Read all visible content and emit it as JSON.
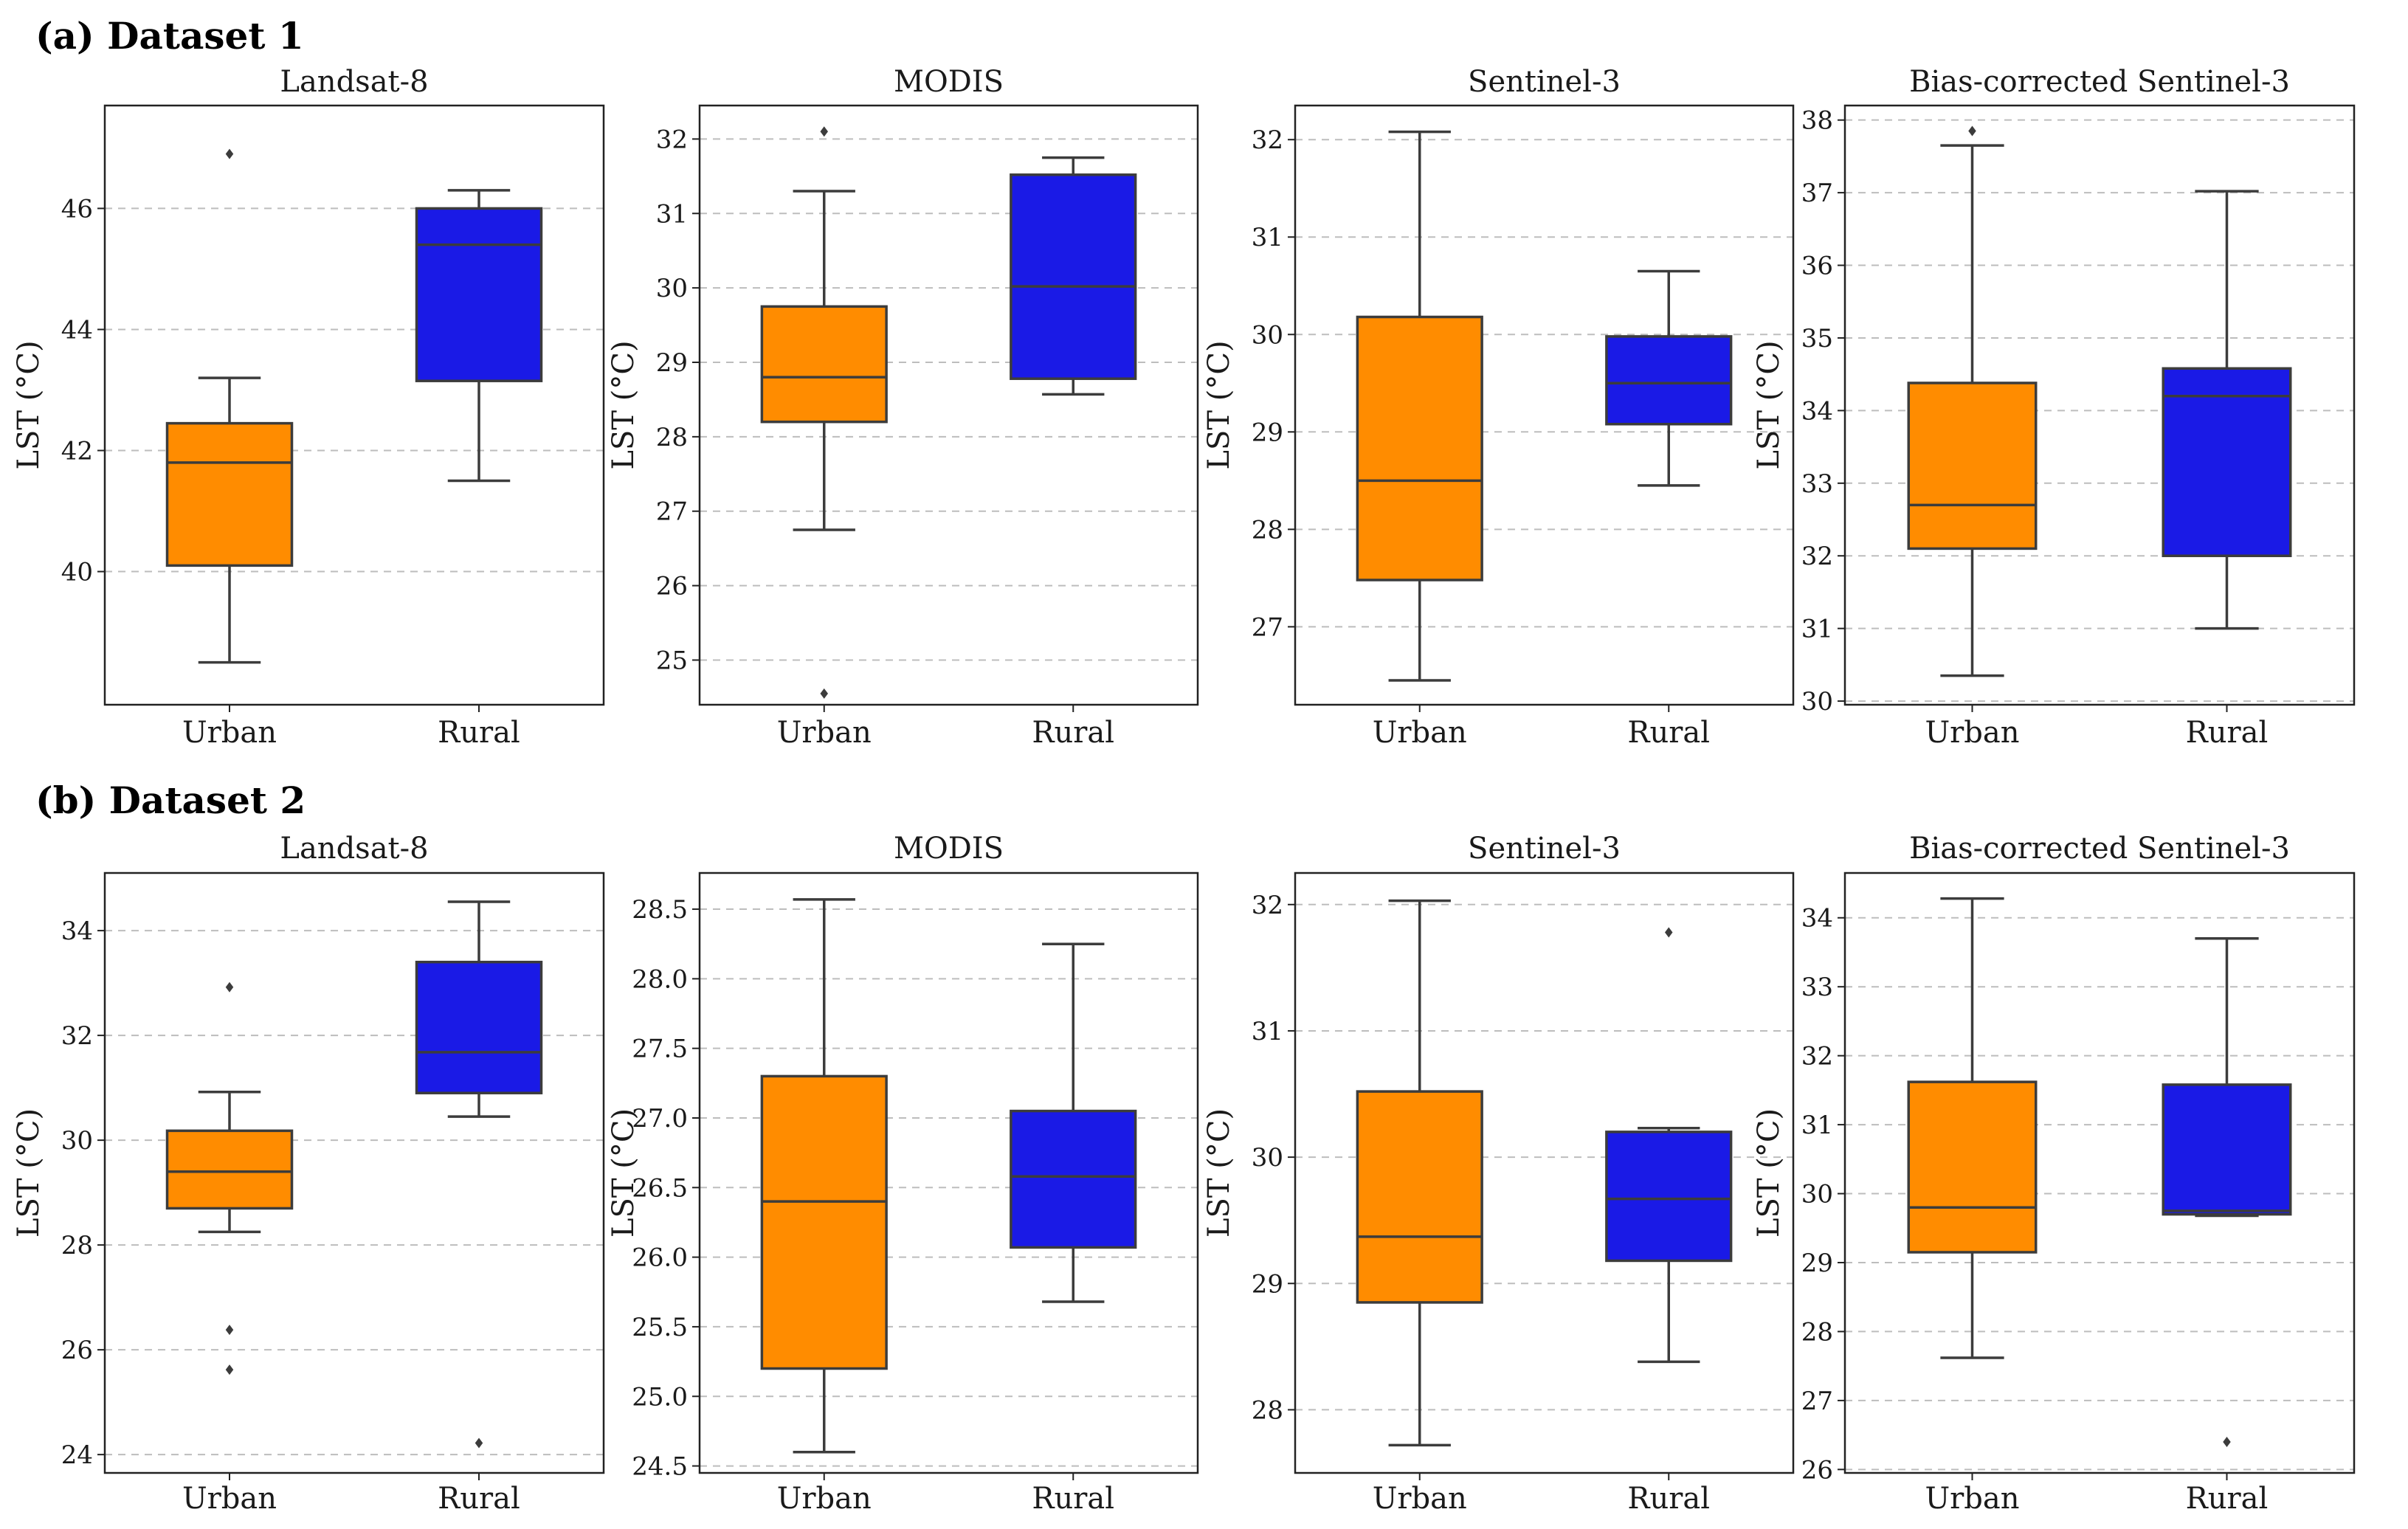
{
  "figure": {
    "sections": [
      {
        "label": "(a) Dataset 1"
      },
      {
        "label": "(b) Dataset 2"
      }
    ],
    "colors": {
      "Urban": "#ff8c00",
      "Rural": "#1a1ae6",
      "whisker": "#3c3c3c",
      "grid": "#bdbdbd"
    }
  },
  "chart_data": [
    {
      "type": "box",
      "section": "(a) Dataset 1",
      "title": "Landsat-8",
      "ylabel": "LST (°C)",
      "categories": [
        "Urban",
        "Rural"
      ],
      "ylim": [
        37.8,
        47.7
      ],
      "yticks": [
        40,
        42,
        44,
        46
      ],
      "tick_format": "int",
      "grid": true,
      "boxes": [
        {
          "category": "Urban",
          "whisker_low": 38.5,
          "q1": 40.1,
          "median": 41.8,
          "q3": 42.45,
          "whisker_high": 43.2,
          "outliers": [
            46.9
          ]
        },
        {
          "category": "Rural",
          "whisker_low": 41.5,
          "q1": 43.15,
          "median": 45.4,
          "q3": 46.0,
          "whisker_high": 46.3,
          "outliers": []
        }
      ]
    },
    {
      "type": "box",
      "section": "(a) Dataset 1",
      "title": "MODIS",
      "ylabel": "LST (°C)",
      "categories": [
        "Urban",
        "Rural"
      ],
      "ylim": [
        24.4,
        32.45
      ],
      "yticks": [
        25,
        26,
        27,
        28,
        29,
        30,
        31,
        32
      ],
      "tick_format": "int",
      "grid": true,
      "boxes": [
        {
          "category": "Urban",
          "whisker_low": 26.75,
          "q1": 28.2,
          "median": 28.8,
          "q3": 29.75,
          "whisker_high": 31.3,
          "outliers": [
            24.55,
            32.1
          ]
        },
        {
          "category": "Rural",
          "whisker_low": 28.57,
          "q1": 28.78,
          "median": 30.02,
          "q3": 31.52,
          "whisker_high": 31.75,
          "outliers": []
        }
      ]
    },
    {
      "type": "box",
      "section": "(a) Dataset 1",
      "title": "Sentinel-3",
      "ylabel": "LST (°C)",
      "categories": [
        "Urban",
        "Rural"
      ],
      "ylim": [
        26.2,
        32.35
      ],
      "yticks": [
        27,
        28,
        29,
        30,
        31,
        32
      ],
      "tick_format": "int",
      "grid": true,
      "boxes": [
        {
          "category": "Urban",
          "whisker_low": 26.45,
          "q1": 27.48,
          "median": 28.5,
          "q3": 30.18,
          "whisker_high": 32.08,
          "outliers": []
        },
        {
          "category": "Rural",
          "whisker_low": 28.45,
          "q1": 29.08,
          "median": 29.5,
          "q3": 29.98,
          "whisker_high": 30.65,
          "outliers": []
        }
      ]
    },
    {
      "type": "box",
      "section": "(a) Dataset 1",
      "title": "Bias-corrected Sentinel-3",
      "ylabel": "LST (°C)",
      "categories": [
        "Urban",
        "Rural"
      ],
      "ylim": [
        29.95,
        38.2
      ],
      "yticks": [
        30,
        31,
        32,
        33,
        34,
        35,
        36,
        37,
        38
      ],
      "tick_format": "int",
      "grid": true,
      "boxes": [
        {
          "category": "Urban",
          "whisker_low": 30.35,
          "q1": 32.1,
          "median": 32.7,
          "q3": 34.38,
          "whisker_high": 37.65,
          "outliers": [
            37.85
          ]
        },
        {
          "category": "Rural",
          "whisker_low": 31.0,
          "q1": 32.0,
          "median": 34.2,
          "q3": 34.58,
          "whisker_high": 37.02,
          "outliers": []
        }
      ]
    },
    {
      "type": "box",
      "section": "(b) Dataset 2",
      "title": "Landsat-8",
      "ylabel": "LST (°C)",
      "categories": [
        "Urban",
        "Rural"
      ],
      "ylim": [
        23.65,
        35.1
      ],
      "yticks": [
        24,
        26,
        28,
        30,
        32,
        34
      ],
      "tick_format": "int",
      "grid": true,
      "boxes": [
        {
          "category": "Urban",
          "whisker_low": 28.25,
          "q1": 28.7,
          "median": 29.4,
          "q3": 30.18,
          "whisker_high": 30.92,
          "outliers": [
            25.62,
            26.38,
            32.92
          ]
        },
        {
          "category": "Rural",
          "whisker_low": 30.45,
          "q1": 30.9,
          "median": 31.68,
          "q3": 33.4,
          "whisker_high": 34.55,
          "outliers": [
            24.22
          ]
        }
      ]
    },
    {
      "type": "box",
      "section": "(b) Dataset 2",
      "title": "MODIS",
      "ylabel": "LST (°C)",
      "categories": [
        "Urban",
        "Rural"
      ],
      "ylim": [
        24.45,
        28.76
      ],
      "yticks": [
        24.5,
        25.0,
        25.5,
        26.0,
        26.5,
        27.0,
        27.5,
        28.0,
        28.5
      ],
      "tick_format": "1dp",
      "grid": true,
      "boxes": [
        {
          "category": "Urban",
          "whisker_low": 24.6,
          "q1": 25.2,
          "median": 26.4,
          "q3": 27.3,
          "whisker_high": 28.57,
          "outliers": []
        },
        {
          "category": "Rural",
          "whisker_low": 25.68,
          "q1": 26.07,
          "median": 26.58,
          "q3": 27.05,
          "whisker_high": 28.25,
          "outliers": []
        }
      ]
    },
    {
      "type": "box",
      "section": "(b) Dataset 2",
      "title": "Sentinel-3",
      "ylabel": "LST (°C)",
      "categories": [
        "Urban",
        "Rural"
      ],
      "ylim": [
        27.5,
        32.25
      ],
      "yticks": [
        28,
        29,
        30,
        31,
        32
      ],
      "tick_format": "int",
      "grid": true,
      "boxes": [
        {
          "category": "Urban",
          "whisker_low": 27.72,
          "q1": 28.85,
          "median": 29.37,
          "q3": 30.52,
          "whisker_high": 32.03,
          "outliers": []
        },
        {
          "category": "Rural",
          "whisker_low": 28.38,
          "q1": 29.18,
          "median": 29.67,
          "q3": 30.2,
          "whisker_high": 30.23,
          "outliers": [
            31.78
          ]
        }
      ]
    },
    {
      "type": "box",
      "section": "(b) Dataset 2",
      "title": "Bias-corrected Sentinel-3",
      "ylabel": "LST (°C)",
      "categories": [
        "Urban",
        "Rural"
      ],
      "ylim": [
        25.95,
        34.65
      ],
      "yticks": [
        26,
        27,
        28,
        29,
        30,
        31,
        32,
        33,
        34
      ],
      "tick_format": "int",
      "grid": true,
      "boxes": [
        {
          "category": "Urban",
          "whisker_low": 27.62,
          "q1": 29.15,
          "median": 29.8,
          "q3": 31.62,
          "whisker_high": 34.28,
          "outliers": []
        },
        {
          "category": "Rural",
          "whisker_low": 29.68,
          "q1": 29.7,
          "median": 29.75,
          "q3": 31.58,
          "whisker_high": 33.7,
          "outliers": [
            26.4
          ]
        }
      ]
    }
  ]
}
